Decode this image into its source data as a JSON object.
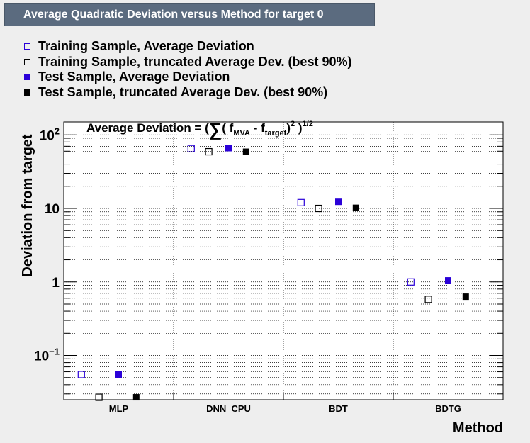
{
  "title": "Average Quadratic Deviation versus Method for target 0",
  "legend": [
    {
      "label": "Training Sample, Average Deviation",
      "marker": "open",
      "color": "#2a00d8"
    },
    {
      "label": "Training Sample, truncated Average Dev. (best 90%)",
      "marker": "open",
      "color": "#000000"
    },
    {
      "label": "Test Sample, Average Deviation",
      "marker": "filled",
      "color": "#2a00d8"
    },
    {
      "label": "Test Sample, truncated Average Dev. (best 90%)",
      "marker": "filled",
      "color": "#000000"
    }
  ],
  "formula": {
    "prefix": "Average Deviation = (",
    "sum": "∑",
    "open": "( f",
    "sub1": "MVA",
    "minus": " - f",
    "sub2": "target",
    "close": ")",
    "sup1": "2",
    "close2": " )",
    "sup2": "1/2"
  },
  "chart_data": {
    "type": "scatter",
    "title": "Average Quadratic Deviation versus Method for target 0",
    "xlabel": "Method",
    "ylabel": "Deviation from target",
    "categories": [
      "MLP",
      "DNN_CPU",
      "BDT",
      "BDTG"
    ],
    "yscale": "log",
    "ylim": [
      0.025,
      150
    ],
    "yticks": [
      {
        "value": 0.1,
        "base": "10",
        "exp": "−1"
      },
      {
        "value": 1,
        "label": "1"
      },
      {
        "value": 10,
        "label": "10"
      },
      {
        "value": 100,
        "base": "10",
        "exp": "2"
      }
    ],
    "grid": true,
    "series": [
      {
        "name": "Training Sample, Average Deviation",
        "marker": "open",
        "color": "#2a00d8",
        "values": [
          0.055,
          65,
          12,
          1.0
        ]
      },
      {
        "name": "Training Sample, truncated Average Dev. (best 90%)",
        "marker": "open",
        "color": "#000000",
        "values": [
          0.027,
          59,
          10,
          0.58
        ]
      },
      {
        "name": "Test Sample, Average Deviation",
        "marker": "filled",
        "color": "#2a00d8",
        "values": [
          0.055,
          66,
          12.3,
          1.05
        ]
      },
      {
        "name": "Test Sample, truncated Average Dev. (best 90%)",
        "marker": "filled",
        "color": "#000000",
        "values": [
          0.027,
          59,
          10.2,
          0.63
        ]
      }
    ]
  }
}
